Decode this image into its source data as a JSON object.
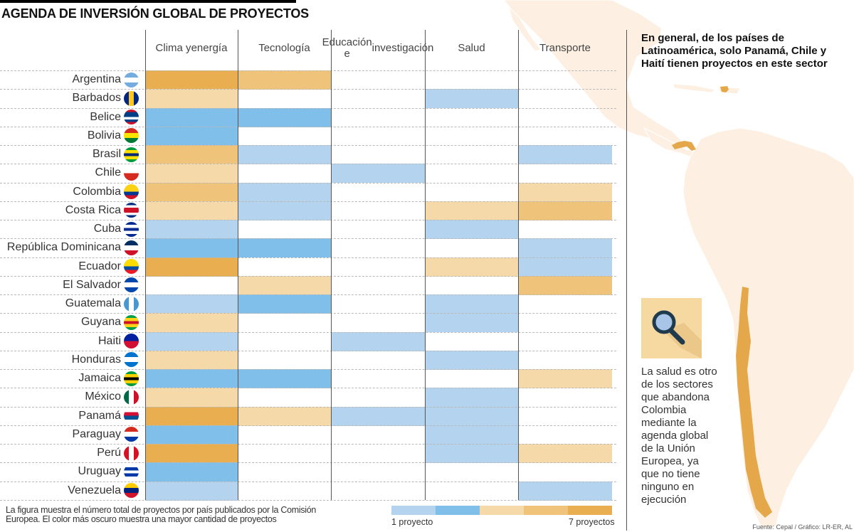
{
  "title": "AGENDA DE INVERSIÓN GLOBAL DE PROYECTOS",
  "side_note": "En general, de los países de Latinoamérica, solo Panamá, Chile y Haití tienen proyectos en este sector",
  "info_icon": "magnifying-glass-icon",
  "info_text": "La salud es otro de los sectores que abandona Colombia mediante la agenda global de la Unión Europea, ya que no tiene ninguno en ejecución",
  "footnote": "La figura muestra el número total de proyectos por país publicados por la Comisión Europea. El color más oscuro muestra una mayor cantidad de proyectos",
  "legend": {
    "min_label": "1 proyecto",
    "max_label": "7 proyectos",
    "colors": [
      "#b3d3ee",
      "#7fbfea",
      "#f6d9a8",
      "#efc47a",
      "#e8ae4f"
    ]
  },
  "source": "Fuente: Cepal / Gráfico: LR-ER, AL",
  "map": {
    "land_color": "#fdf0e2",
    "highlight_color": "#e4a84a",
    "highlighted_countries": [
      "Haití",
      "Panamá",
      "Chile"
    ]
  },
  "chart_data": {
    "type": "heatmap",
    "title": "AGENDA DE INVERSIÓN GLOBAL DE PROYECTOS",
    "columns": [
      "Clima y energía",
      "Tecnología",
      "Educación e investigación",
      "Salud",
      "Transporte"
    ],
    "column_labels": [
      [
        "Clima y",
        "energía"
      ],
      [
        "Tecnología"
      ],
      [
        "Educación e",
        "investigación"
      ],
      [
        "Salud"
      ],
      [
        "Transporte"
      ]
    ],
    "scale": "color intensity level 0 (none) to 5 (darkest, up to 7 projects)",
    "rows": [
      {
        "country": "Argentina",
        "flag": "argentina-flag-icon",
        "values": [
          5,
          4,
          0,
          0,
          0
        ]
      },
      {
        "country": "Barbados",
        "flag": "barbados-flag-icon",
        "values": [
          3,
          0,
          0,
          1,
          0
        ]
      },
      {
        "country": "Belice",
        "flag": "belize-flag-icon",
        "values": [
          2,
          2,
          0,
          0,
          0
        ]
      },
      {
        "country": "Bolivia",
        "flag": "bolivia-flag-icon",
        "values": [
          2,
          0,
          0,
          0,
          0
        ]
      },
      {
        "country": "Brasil",
        "flag": "brazil-flag-icon",
        "values": [
          4,
          1,
          0,
          0,
          1
        ]
      },
      {
        "country": "Chile",
        "flag": "chile-flag-icon",
        "values": [
          3,
          0,
          1,
          0,
          0
        ]
      },
      {
        "country": "Colombia",
        "flag": "colombia-flag-icon",
        "values": [
          4,
          1,
          0,
          0,
          3
        ]
      },
      {
        "country": "Costa Rica",
        "flag": "costa-rica-flag-icon",
        "values": [
          3,
          1,
          0,
          3,
          4
        ]
      },
      {
        "country": "Cuba",
        "flag": "cuba-flag-icon",
        "values": [
          1,
          0,
          0,
          1,
          0
        ]
      },
      {
        "country": "República Dominicana",
        "flag": "dominican-republic-flag-icon",
        "values": [
          2,
          2,
          0,
          0,
          1
        ]
      },
      {
        "country": "Ecuador",
        "flag": "ecuador-flag-icon",
        "values": [
          5,
          0,
          0,
          3,
          1
        ]
      },
      {
        "country": "El Salvador",
        "flag": "el-salvador-flag-icon",
        "values": [
          0,
          3,
          0,
          0,
          4
        ]
      },
      {
        "country": "Guatemala",
        "flag": "guatemala-flag-icon",
        "values": [
          1,
          2,
          0,
          1,
          0
        ]
      },
      {
        "country": "Guyana",
        "flag": "guyana-flag-icon",
        "values": [
          3,
          0,
          0,
          1,
          0
        ]
      },
      {
        "country": "Haiti",
        "flag": "haiti-flag-icon",
        "values": [
          1,
          0,
          1,
          0,
          0
        ]
      },
      {
        "country": "Honduras",
        "flag": "honduras-flag-icon",
        "values": [
          3,
          0,
          0,
          1,
          0
        ]
      },
      {
        "country": "Jamaica",
        "flag": "jamaica-flag-icon",
        "values": [
          2,
          2,
          0,
          0,
          3
        ]
      },
      {
        "country": "México",
        "flag": "mexico-flag-icon",
        "values": [
          3,
          0,
          0,
          1,
          0
        ]
      },
      {
        "country": "Panamá",
        "flag": "panama-flag-icon",
        "values": [
          5,
          3,
          1,
          1,
          0
        ]
      },
      {
        "country": "Paraguay",
        "flag": "paraguay-flag-icon",
        "values": [
          2,
          0,
          0,
          1,
          0
        ]
      },
      {
        "country": "Perú",
        "flag": "peru-flag-icon",
        "values": [
          5,
          0,
          0,
          1,
          3
        ]
      },
      {
        "country": "Uruguay",
        "flag": "uruguay-flag-icon",
        "values": [
          2,
          0,
          0,
          0,
          0
        ]
      },
      {
        "country": "Venezuela",
        "flag": "venezuela-flag-icon",
        "values": [
          1,
          0,
          0,
          0,
          1
        ]
      }
    ],
    "legend": {
      "min": "1 proyecto",
      "max": "7 proyectos",
      "levels": 5
    }
  }
}
